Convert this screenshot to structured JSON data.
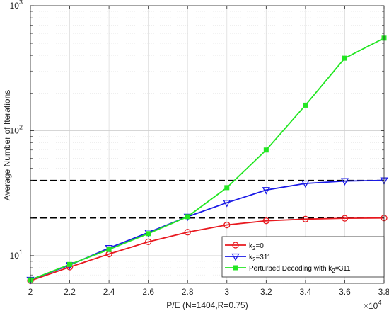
{
  "chart_data": {
    "type": "line",
    "xlabel": "P/E (N=1404,R=0.75)",
    "ylabel": "Average Number of Iterations",
    "x_exponent_base": "×10",
    "x_exponent_power": "4",
    "x": [
      20000,
      22000,
      24000,
      26000,
      28000,
      30000,
      32000,
      34000,
      36000,
      38000
    ],
    "x_tick_values": [
      20000,
      22000,
      24000,
      26000,
      28000,
      30000,
      32000,
      34000,
      36000,
      38000
    ],
    "x_tick_labels": [
      "2",
      "2.2",
      "2.4",
      "2.6",
      "2.8",
      "3",
      "3.2",
      "3.4",
      "3.6",
      "3.8"
    ],
    "xlim": [
      20000,
      38000
    ],
    "yscale": "log",
    "ylim": [
      6,
      1000
    ],
    "y_tick_base": "10",
    "y_tick_values": [
      10,
      100,
      1000
    ],
    "y_tick_powers": [
      "1",
      "2",
      "3"
    ],
    "grid": true,
    "legend_position": "lower-right",
    "series": [
      {
        "name_main": "k",
        "name_sub": "2",
        "name_rest": "=0",
        "color": "#e8191f",
        "marker": "circle",
        "values": [
          6.3,
          8.1,
          10.3,
          12.9,
          15.4,
          17.6,
          19.0,
          19.6,
          19.9,
          20.0
        ]
      },
      {
        "name_main": "k",
        "name_sub": "2",
        "name_rest": "=311",
        "color": "#1a1ae6",
        "marker": "triangle-down",
        "values": [
          6.4,
          8.4,
          11.5,
          15.3,
          20.5,
          26.5,
          33.5,
          37.8,
          39.5,
          40.0
        ]
      },
      {
        "name_main": "Perturbed Decoding with k",
        "name_sub": "2",
        "name_rest": "=311",
        "color": "#22e622",
        "marker": "square",
        "values": [
          6.4,
          8.5,
          11.2,
          15.0,
          20.5,
          35.0,
          70.0,
          160.0,
          380.0,
          550.0
        ]
      }
    ],
    "reference_lines": [
      {
        "y": 40,
        "style": "dashed",
        "color": "#000000"
      },
      {
        "y": 20,
        "style": "dashed",
        "color": "#000000"
      }
    ]
  }
}
